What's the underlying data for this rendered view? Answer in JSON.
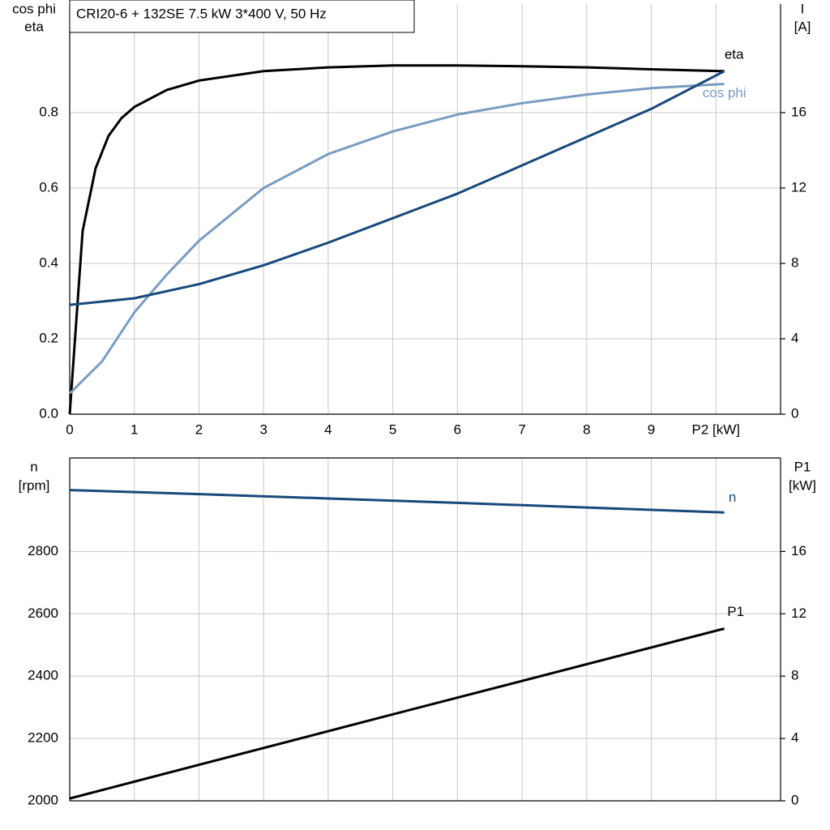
{
  "chart_data": [
    {
      "type": "line",
      "title": "CRI20-6 + 132SE   7.5 kW   3*400 V, 50 Hz",
      "ylabel": [
        "cos phi",
        "eta"
      ],
      "y2label": [
        "I",
        "[A]"
      ],
      "xlim": [
        0,
        11
      ],
      "xticks": [
        0,
        1,
        2,
        3,
        4,
        5,
        6,
        7,
        8,
        9,
        {
          "value": 10,
          "label": "P2 [kW]"
        }
      ],
      "show_xtick_labels": true,
      "ylim": [
        0,
        1.088
      ],
      "yticks": [
        {
          "value": 0,
          "label": "0.0"
        },
        0.2,
        0.4,
        0.6,
        0.8
      ],
      "y2lim": [
        0,
        21.76
      ],
      "y2ticks": [
        0,
        4,
        8,
        12,
        16
      ],
      "grid": true,
      "series": [
        {
          "name": "eta",
          "color": "#000000",
          "axis": "y",
          "x": [
            0,
            0.2,
            0.4,
            0.6,
            0.8,
            1,
            1.5,
            2,
            3,
            4,
            5,
            6,
            7,
            8,
            9,
            10.13
          ],
          "values": [
            0.0,
            0.486,
            0.652,
            0.738,
            0.785,
            0.815,
            0.86,
            0.885,
            0.91,
            0.92,
            0.925,
            0.925,
            0.923,
            0.92,
            0.915,
            0.91
          ]
        },
        {
          "name": "cos phi",
          "color": "#7a9cc0",
          "axis": "y",
          "x": [
            0,
            0.5,
            1,
            1.5,
            2,
            3,
            4,
            5,
            6,
            7,
            8,
            9,
            10.13
          ],
          "values": [
            0.055,
            0.14,
            0.27,
            0.37,
            0.46,
            0.6,
            0.69,
            0.75,
            0.795,
            0.825,
            0.848,
            0.865,
            0.876
          ]
        },
        {
          "name": "I",
          "color": "#17497b",
          "axis": "y2",
          "x": [
            0,
            1,
            2,
            3,
            4,
            5,
            6,
            7,
            8,
            9,
            10.13
          ],
          "values": [
            5.8,
            6.15,
            6.9,
            7.9,
            9.1,
            10.4,
            11.7,
            13.2,
            14.7,
            16.2,
            18.2
          ]
        }
      ]
    },
    {
      "type": "line",
      "ylabel": [
        "n",
        "[rpm]"
      ],
      "y2label": [
        "P1",
        "[kW]"
      ],
      "xlim": [
        0,
        11
      ],
      "xticks": [
        0,
        1,
        2,
        3,
        4,
        5,
        6,
        7,
        8,
        9,
        10
      ],
      "show_xtick_labels": false,
      "ylim": [
        2000,
        3100
      ],
      "yticks": [
        2000,
        2200,
        2400,
        2600,
        2800
      ],
      "y2lim": [
        0,
        22
      ],
      "y2ticks": [
        0,
        4,
        8,
        12,
        16
      ],
      "grid": true,
      "series": [
        {
          "name": "n",
          "color": "#17497b",
          "axis": "y",
          "x": [
            0,
            2,
            4,
            6,
            8,
            10.13
          ],
          "values": [
            2997,
            2984,
            2970,
            2956,
            2941,
            2925
          ]
        },
        {
          "name": "P1",
          "color": "#000000",
          "axis": "y2",
          "x": [
            0,
            5,
            10.13
          ],
          "values": [
            0.15,
            5.55,
            11.05
          ]
        }
      ]
    }
  ]
}
